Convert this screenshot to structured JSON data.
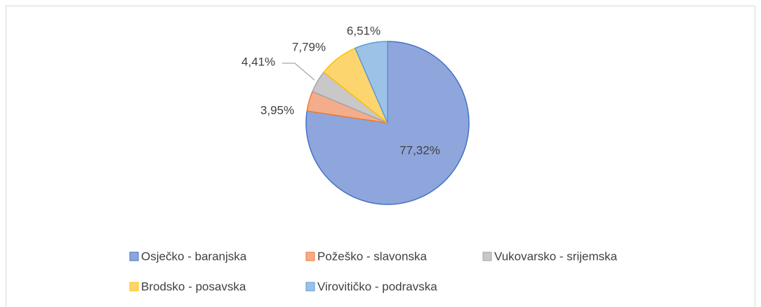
{
  "chart_data": {
    "type": "pie",
    "categories": [
      "Osječko - baranjska",
      "Požeško - slavonska",
      "Vukovarsko - srijemska",
      "Brodsko - posavska",
      "Virovitičko - podravska"
    ],
    "values": [
      77.32,
      3.95,
      4.41,
      7.79,
      6.51
    ],
    "value_labels": [
      "77,32%",
      "3,95%",
      "4,41%",
      "7,79%",
      "6,51%"
    ],
    "colors": [
      "#8ea6dc",
      "#f4ad8a",
      "#c8c8c8",
      "#fdd56f",
      "#9dc2e8"
    ],
    "edge_colors": [
      "#4472c4",
      "#ed7d31",
      "#a5a5a5",
      "#ffc000",
      "#5b9bd5"
    ],
    "legend": "bottom"
  }
}
